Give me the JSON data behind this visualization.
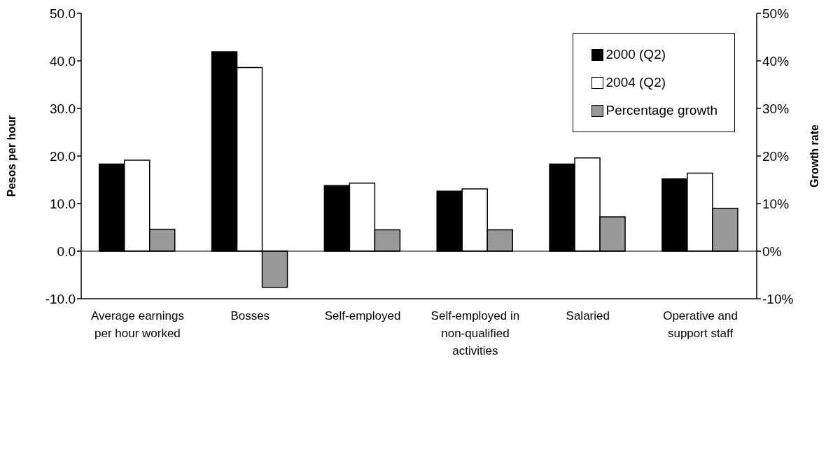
{
  "chart_data": {
    "type": "bar",
    "ylabel": "Pesos per hour",
    "y2label": "Growth rate",
    "categories": [
      "Average earnings per hour worked",
      "Bosses",
      "Self-employed",
      "Self-employed in non-qualified activities",
      "Salaried",
      "Operative and support staff"
    ],
    "series": [
      {
        "name": "2000 (Q2)",
        "color": "#000000",
        "values": [
          18.3,
          41.9,
          13.8,
          12.6,
          18.3,
          15.2
        ]
      },
      {
        "name": "2004 (Q2)",
        "color": "#ffffff",
        "values": [
          19.1,
          38.6,
          14.3,
          13.1,
          19.6,
          16.4
        ]
      },
      {
        "name": "Percentage growth",
        "color": "#999999",
        "axis": "y2",
        "values": [
          4.6,
          -7.6,
          4.5,
          4.5,
          7.2,
          9.0
        ]
      }
    ],
    "ylim": [
      -10,
      50
    ],
    "yticks": [
      {
        "value": -10,
        "label": "-10.0"
      },
      {
        "value": 0,
        "label": "0.0"
      },
      {
        "value": 10,
        "label": "10.0"
      },
      {
        "value": 20,
        "label": "20.0"
      },
      {
        "value": 30,
        "label": "30.0"
      },
      {
        "value": 40,
        "label": "40.0"
      },
      {
        "value": 50,
        "label": "50.0"
      }
    ],
    "y2lim": [
      -10,
      50
    ],
    "y2ticks": [
      {
        "value": -10,
        "label": "-10%"
      },
      {
        "value": 0,
        "label": "0%"
      },
      {
        "value": 10,
        "label": "10%"
      },
      {
        "value": 20,
        "label": "20%"
      },
      {
        "value": 30,
        "label": "30%"
      },
      {
        "value": 40,
        "label": "40%"
      },
      {
        "value": 50,
        "label": "50%"
      }
    ],
    "legend": "top right"
  }
}
